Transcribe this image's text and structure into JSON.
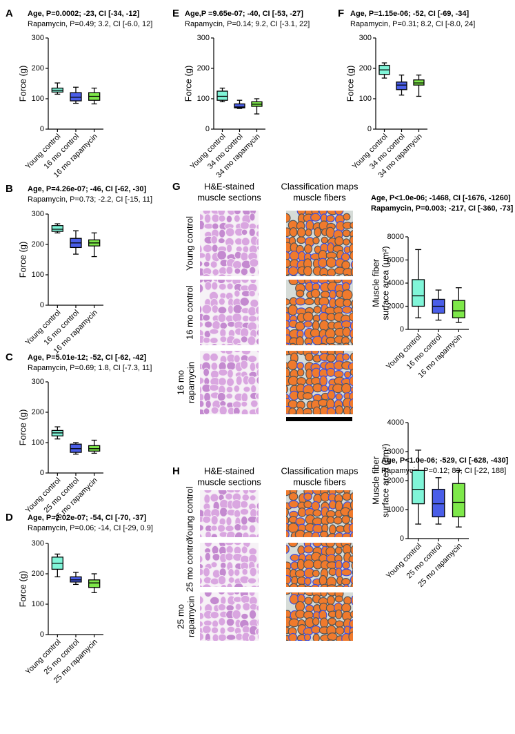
{
  "chart_data": [
    {
      "type": "box",
      "panel": "A",
      "title": "Age, P=0.0002; -23, CI [-34, -12]",
      "subtitle": "Rapamycin, P=0.49; 3.2, CI [-6.0, 12]",
      "ylabel": [
        "Force (g)"
      ],
      "ylim": [
        0,
        300
      ],
      "yticks": [
        0,
        100,
        200,
        300
      ],
      "categories": [
        "Young control",
        "16 mo control",
        "16 mo rapamycin"
      ],
      "colors": [
        "#80f5d8",
        "#4a5ee8",
        "#7ee84a"
      ],
      "stats": [
        [
          115,
          122,
          128,
          135,
          152
        ],
        [
          85,
          93,
          105,
          120,
          138
        ],
        [
          83,
          95,
          108,
          120,
          135
        ]
      ]
    },
    {
      "type": "box",
      "panel": "B",
      "title": "Age, P=4.26e-07; -46, CI [-62, -30]",
      "subtitle": "Rapamycin, P=0.73; -2.2, CI [-15, 11]",
      "ylabel": [
        "Force (g)"
      ],
      "ylim": [
        0,
        300
      ],
      "yticks": [
        0,
        100,
        200,
        300
      ],
      "categories": [
        "Young control",
        "16 mo control",
        "16 mo rapamycin"
      ],
      "colors": [
        "#80f5d8",
        "#4a5ee8",
        "#7ee84a"
      ],
      "stats": [
        [
          238,
          243,
          250,
          262,
          268
        ],
        [
          168,
          190,
          205,
          220,
          245
        ],
        [
          160,
          195,
          205,
          215,
          238
        ]
      ]
    },
    {
      "type": "box",
      "panel": "C",
      "title": "Age, P=5.01e-12; -52, CI [-62, -42]",
      "subtitle": "Rapamycin, P=0.69; 1.8, CI [-7.3, 11]",
      "ylabel": [
        "Force (g)"
      ],
      "ylim": [
        0,
        300
      ],
      "yticks": [
        0,
        100,
        200,
        300
      ],
      "categories": [
        "Young control",
        "25 mo control",
        "25 mo rapamycin"
      ],
      "colors": [
        "#80f5d8",
        "#4a5ee8",
        "#7ee84a"
      ],
      "stats": [
        [
          112,
          122,
          132,
          140,
          152
        ],
        [
          62,
          68,
          80,
          95,
          100
        ],
        [
          65,
          72,
          80,
          90,
          108
        ]
      ]
    },
    {
      "type": "box",
      "panel": "D",
      "title": "Age, P=2.02e-07; -54, CI [-70, -37]",
      "subtitle": "Rapamycin, P=0.06; -14, CI [-29, 0.9]",
      "ylabel": [
        "Force (g)"
      ],
      "ylim": [
        0,
        300
      ],
      "yticks": [
        0,
        100,
        200,
        300
      ],
      "categories": [
        "Young control",
        "25 mo control",
        "25 mo rapamycin"
      ],
      "colors": [
        "#80f5d8",
        "#4a5ee8",
        "#7ee84a"
      ],
      "stats": [
        [
          190,
          215,
          235,
          255,
          265
        ],
        [
          165,
          173,
          180,
          190,
          205
        ],
        [
          138,
          155,
          170,
          180,
          200
        ]
      ]
    },
    {
      "type": "box",
      "panel": "E",
      "title": "Age,P =9.65e-07; -40, CI [-53, -27]",
      "subtitle": "Rapamycin, P=0.14; 9.2, CI [-3.1, 22]",
      "ylabel": [
        "Force (g)"
      ],
      "ylim": [
        0,
        300
      ],
      "yticks": [
        0,
        100,
        200,
        300
      ],
      "categories": [
        "Young control",
        "34 mo control",
        "34 mo rapamycin"
      ],
      "colors": [
        "#80f5d8",
        "#4a5ee8",
        "#7ee84a"
      ],
      "stats": [
        [
          90,
          95,
          108,
          125,
          135
        ],
        [
          68,
          70,
          73,
          83,
          95
        ],
        [
          50,
          75,
          82,
          90,
          100
        ]
      ]
    },
    {
      "type": "box",
      "panel": "F",
      "title": "Age, P=1.15e-06; -52, CI [-69, -34]",
      "subtitle": "Rapamycin, P=0.31; 8.2, CI [-8.0, 24]",
      "ylabel": [
        "Force (g)"
      ],
      "ylim": [
        0,
        300
      ],
      "yticks": [
        0,
        100,
        200,
        300
      ],
      "categories": [
        "Young control",
        "34 mo control",
        "34 mo rapamycin"
      ],
      "colors": [
        "#80f5d8",
        "#4a5ee8",
        "#7ee84a"
      ],
      "stats": [
        [
          168,
          180,
          195,
          210,
          218
        ],
        [
          112,
          130,
          145,
          155,
          178
        ],
        [
          108,
          145,
          152,
          162,
          178
        ]
      ]
    },
    {
      "type": "box",
      "panel": "G",
      "title": "Age, P<1.0e-06; -1468, CI  [-1676, -1260]",
      "subtitle": "Rapamycin, P=0.003; -217, CI [-360, -73]",
      "subtitle_bold": true,
      "ylabel": [
        "Muscle fiber",
        "surface area (μm²)"
      ],
      "ylim": [
        0,
        8000
      ],
      "yticks": [
        0,
        2000,
        4000,
        6000,
        8000
      ],
      "categories": [
        "Young control",
        "16 mo control",
        "16 mo rapamycin"
      ],
      "colors": [
        "#80f5d8",
        "#4a5ee8",
        "#7ee84a"
      ],
      "stats": [
        [
          1000,
          2000,
          2900,
          4300,
          6900
        ],
        [
          800,
          1400,
          2000,
          2600,
          3400
        ],
        [
          600,
          1000,
          1600,
          2500,
          3600
        ]
      ]
    },
    {
      "type": "box",
      "panel": "H",
      "title": "Age, P<1.0e-06; -529, CI [-628, -430]",
      "subtitle": "Rapamycin, P=0.12; 83, CI [-22, 188]",
      "ylabel": [
        "Muscle fiber",
        "surface area (μm²)"
      ],
      "ylim": [
        0,
        4000
      ],
      "yticks": [
        0,
        1000,
        2000,
        3000,
        4000
      ],
      "categories": [
        "Young control",
        "25 mo control",
        "25 mo rapamycin"
      ],
      "colors": [
        "#80f5d8",
        "#4a5ee8",
        "#7ee84a"
      ],
      "stats": [
        [
          500,
          1200,
          1700,
          2350,
          3050
        ],
        [
          500,
          750,
          1200,
          1700,
          2100
        ],
        [
          400,
          750,
          1250,
          1900,
          2350
        ]
      ]
    }
  ],
  "micrographs": [
    {
      "headers": [
        [
          "H&E-stained",
          "muscle sections"
        ],
        [
          "Classification maps",
          "muscle fibers"
        ]
      ],
      "rows": [
        [
          "Young control"
        ],
        [
          "16 mo control"
        ],
        [
          "16 mo",
          "rapamycin"
        ]
      ]
    },
    {
      "headers": [
        [
          "H&E-stained",
          "muscle sections"
        ],
        [
          "Classification maps",
          "muscle fibers"
        ]
      ],
      "rows": [
        [
          "Young control"
        ],
        [
          "25 mo control"
        ],
        [
          "25 mo",
          "rapamycin"
        ]
      ]
    }
  ]
}
